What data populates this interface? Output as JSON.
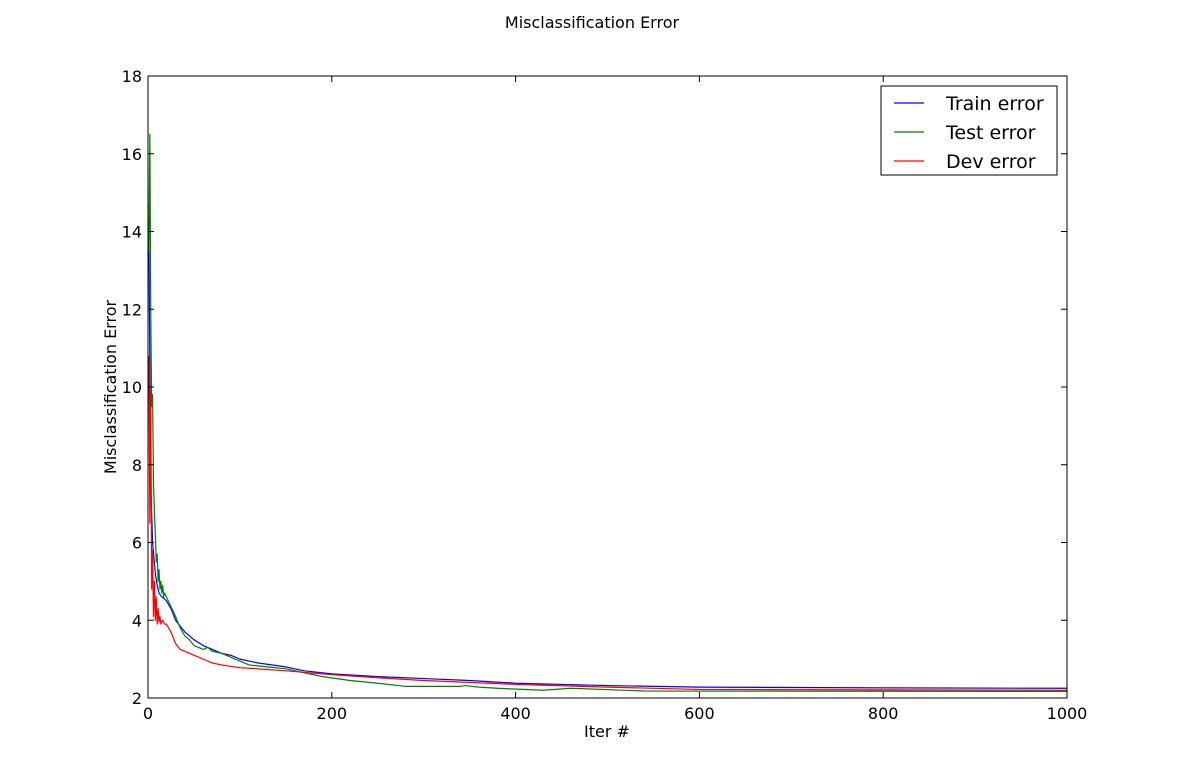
{
  "chart_data": {
    "type": "line",
    "title": "Misclassification Error",
    "xlabel": "Iter #",
    "ylabel": "Misclassification Error",
    "xlim": [
      0,
      1000
    ],
    "ylim": [
      2,
      18
    ],
    "xticks": [
      0,
      200,
      400,
      600,
      800,
      1000
    ],
    "yticks": [
      2,
      4,
      6,
      8,
      10,
      12,
      14,
      16,
      18
    ],
    "grid": false,
    "legend_position": "top-right",
    "series": [
      {
        "name": "Train error",
        "color": "#0000ff",
        "x": [
          1,
          3,
          5,
          8,
          10,
          12,
          15,
          18,
          20,
          25,
          30,
          35,
          40,
          50,
          60,
          70,
          80,
          90,
          100,
          120,
          150,
          170,
          200,
          250,
          300,
          350,
          400,
          500,
          600,
          700,
          800,
          1000
        ],
        "y": [
          13.8,
          7.5,
          6.0,
          5.2,
          4.9,
          4.7,
          4.6,
          4.55,
          4.5,
          4.3,
          4.0,
          3.85,
          3.7,
          3.5,
          3.35,
          3.25,
          3.15,
          3.1,
          3.0,
          2.9,
          2.8,
          2.7,
          2.62,
          2.55,
          2.5,
          2.45,
          2.38,
          2.32,
          2.28,
          2.27,
          2.26,
          2.25
        ]
      },
      {
        "name": "Test error",
        "color": "#008000",
        "x": [
          1,
          2,
          3,
          4,
          5,
          6,
          7,
          8,
          9,
          10,
          11,
          12,
          13,
          14,
          15,
          16,
          17,
          18,
          19,
          20,
          25,
          30,
          35,
          40,
          45,
          50,
          55,
          60,
          65,
          70,
          80,
          90,
          100,
          110,
          130,
          150,
          170,
          190,
          220,
          250,
          280,
          340,
          345,
          360,
          380,
          430,
          460,
          540,
          1000
        ],
        "y": [
          13.5,
          16.5,
          12.0,
          9.5,
          9.8,
          7.5,
          6.8,
          6.2,
          5.5,
          5.7,
          5.0,
          5.3,
          4.8,
          5.0,
          4.7,
          4.9,
          4.6,
          4.7,
          4.65,
          4.6,
          4.35,
          4.1,
          3.8,
          3.6,
          3.5,
          3.35,
          3.3,
          3.25,
          3.3,
          3.2,
          3.15,
          3.05,
          2.95,
          2.85,
          2.8,
          2.75,
          2.65,
          2.55,
          2.45,
          2.38,
          2.3,
          2.3,
          2.32,
          2.28,
          2.25,
          2.2,
          2.25,
          2.18,
          2.17
        ]
      },
      {
        "name": "Dev error",
        "color": "#ff0000",
        "x": [
          1,
          2,
          3,
          4,
          5,
          6,
          7,
          8,
          9,
          10,
          11,
          12,
          13,
          14,
          16,
          18,
          20,
          25,
          30,
          35,
          40,
          50,
          60,
          70,
          80,
          100,
          120,
          150,
          200,
          250,
          300,
          400,
          500,
          600,
          1000
        ],
        "y": [
          10.8,
          6.5,
          9.9,
          4.8,
          5.8,
          4.1,
          5.0,
          4.0,
          4.6,
          3.9,
          4.3,
          3.95,
          4.1,
          3.9,
          4.0,
          3.9,
          3.9,
          3.7,
          3.4,
          3.25,
          3.2,
          3.1,
          3.0,
          2.9,
          2.85,
          2.78,
          2.75,
          2.7,
          2.6,
          2.52,
          2.45,
          2.35,
          2.28,
          2.22,
          2.2
        ]
      }
    ]
  }
}
